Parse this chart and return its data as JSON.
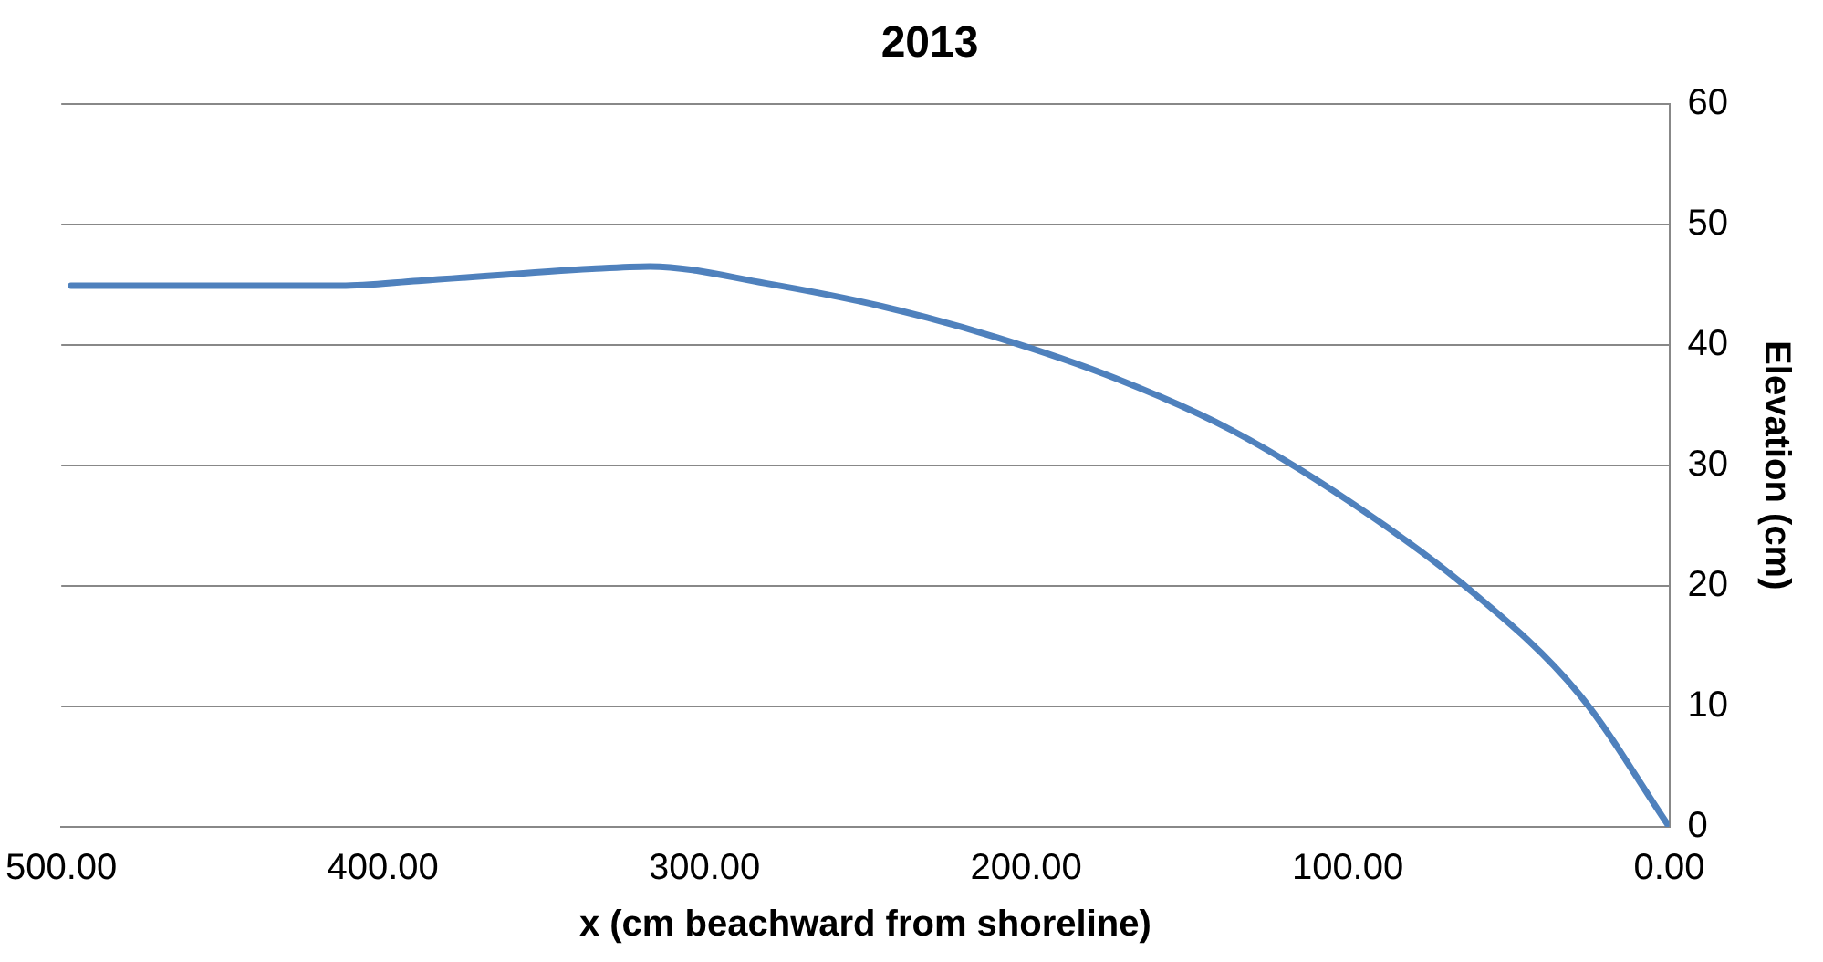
{
  "chart_data": {
    "type": "line",
    "title": "2013",
    "xlabel": "x (cm beachward from shoreline)",
    "ylabel": "Elevation (cm)",
    "x": [
      497,
      413,
      389,
      335,
      317,
      281,
      245,
      209,
      172,
      136,
      100,
      64,
      28,
      0
    ],
    "series": [
      {
        "color": "#4f81bd",
        "values": [
          44.9,
          44.9,
          45.3,
          46.3,
          46.5,
          45.1,
          43.2,
          40.6,
          37.2,
          32.9,
          27.1,
          20.1,
          11.0,
          0
        ]
      }
    ],
    "xlim": [
      500,
      0
    ],
    "xticks": [
      {
        "value": 500,
        "label": "500.00"
      },
      {
        "value": 400,
        "label": "400.00"
      },
      {
        "value": 300,
        "label": "300.00"
      },
      {
        "value": 200,
        "label": "200.00"
      },
      {
        "value": 100,
        "label": "100.00"
      },
      {
        "value": 0,
        "label": "0.00"
      }
    ],
    "ylim": [
      0,
      60
    ],
    "yticks": [
      0,
      10,
      20,
      30,
      40,
      50,
      60
    ],
    "grid": "y",
    "legend": false,
    "marker": "none",
    "line_style": "solid"
  }
}
